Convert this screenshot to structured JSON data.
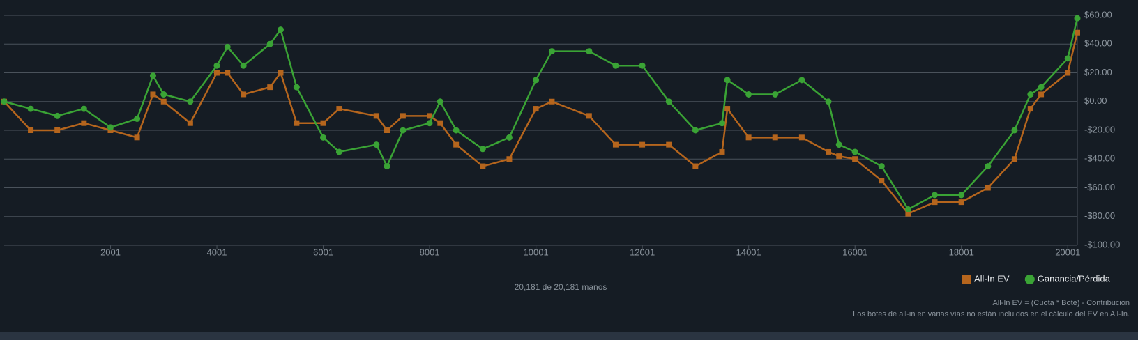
{
  "chart_data": {
    "type": "line",
    "x": [
      1,
      500,
      1000,
      1500,
      2000,
      2500,
      2800,
      3000,
      3500,
      4000,
      4200,
      4500,
      5000,
      5200,
      5500,
      6000,
      6300,
      7000,
      7200,
      7500,
      8000,
      8200,
      8500,
      9000,
      9500,
      10000,
      10300,
      11000,
      11500,
      12000,
      12500,
      13000,
      13500,
      13600,
      14000,
      14500,
      15000,
      15500,
      15700,
      16000,
      16500,
      17000,
      17500,
      18000,
      18500,
      19000,
      19300,
      19500,
      20000,
      20181
    ],
    "series": [
      {
        "name": "All-In EV",
        "color": "#b5651d",
        "marker": "square",
        "values": [
          0,
          -20,
          -20,
          -15,
          -20,
          -25,
          5,
          0,
          -15,
          20,
          20,
          5,
          10,
          20,
          -15,
          -15,
          -5,
          -10,
          -20,
          -10,
          -10,
          -15,
          -30,
          -45,
          -40,
          -5,
          0,
          -10,
          -30,
          -30,
          -30,
          -45,
          -35,
          -5,
          -25,
          -25,
          -25,
          -35,
          -38,
          -40,
          -55,
          -78,
          -70,
          -70,
          -60,
          -40,
          -5,
          5,
          20,
          48
        ]
      },
      {
        "name": "Ganancia/Pérdida",
        "color": "#3aa335",
        "marker": "circle",
        "values": [
          0,
          -5,
          -10,
          -5,
          -18,
          -12,
          18,
          5,
          0,
          25,
          38,
          25,
          40,
          50,
          10,
          -25,
          -35,
          -30,
          -45,
          -20,
          -15,
          0,
          -20,
          -33,
          -25,
          15,
          35,
          35,
          25,
          25,
          0,
          -20,
          -15,
          15,
          5,
          5,
          15,
          0,
          -30,
          -35,
          -45,
          -75,
          -65,
          -65,
          -45,
          -20,
          5,
          10,
          30,
          58
        ]
      }
    ],
    "xlim": [
      1,
      20181
    ],
    "xticks": [
      2001,
      4001,
      6001,
      8001,
      10001,
      12001,
      14001,
      16001,
      18001,
      20001
    ],
    "ylim": [
      -100,
      60
    ],
    "yticks": [
      {
        "value": -100,
        "label": "-$100.00"
      },
      {
        "value": -80,
        "label": "-$80.00"
      },
      {
        "value": -60,
        "label": "-$60.00"
      },
      {
        "value": -40,
        "label": "-$40.00"
      },
      {
        "value": -20,
        "label": "-$20.00"
      },
      {
        "value": 0,
        "label": "$0.00"
      },
      {
        "value": 20,
        "label": "$20.00"
      },
      {
        "value": 40,
        "label": "$40.00"
      },
      {
        "value": 60,
        "label": "$60.00"
      }
    ],
    "grid": true,
    "legend": "bottom-right",
    "hands_label": "20,181 de 20,181 manos",
    "notes": [
      "All-In EV = (Cuota * Bote) - Contribución",
      "Los botes de all-in en varias vías no están incluidos en el cálculo del EV en All-In."
    ]
  }
}
